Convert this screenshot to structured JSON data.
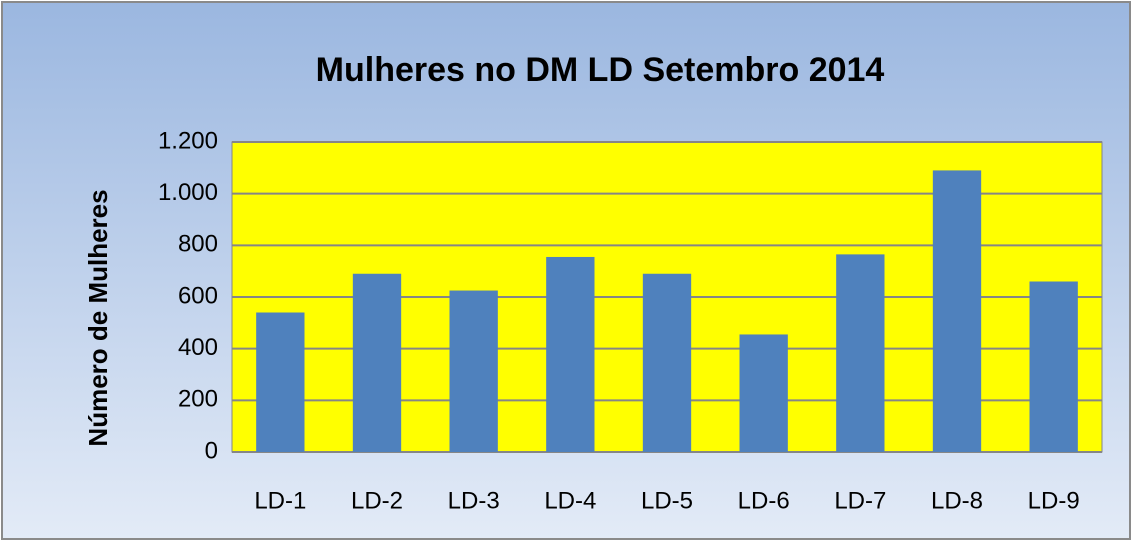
{
  "chart_data": {
    "type": "bar",
    "title": "Mulheres no DM LD  Setembro 2014",
    "y_label": "Número de Mulheres",
    "categories": [
      "LD-1",
      "LD-2",
      "LD-3",
      "LD-4",
      "LD-5",
      "LD-6",
      "LD-7",
      "LD-8",
      "LD-9"
    ],
    "values": [
      540,
      690,
      625,
      755,
      690,
      455,
      765,
      1090,
      660
    ],
    "color": "#4f81bd",
    "plot_background": "#ffff00",
    "ylim": [
      0,
      1200
    ],
    "yticks": [
      0,
      200,
      400,
      600,
      800,
      {
        "value": 1000,
        "label": "1.000"
      },
      {
        "value": 1200,
        "label": "1.200"
      }
    ],
    "grid": true
  }
}
